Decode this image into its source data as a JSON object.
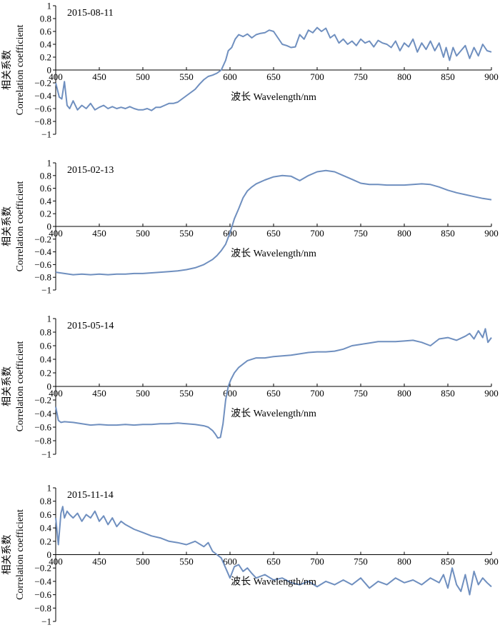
{
  "chart_data": [
    {
      "type": "line",
      "date_label": "2015-08-11",
      "xlabel": "波长 Wavelength/nm",
      "ylabel_cn": "相关系数",
      "ylabel_en": "Correlation coefficient",
      "xlim": [
        400,
        900
      ],
      "ylim": [
        -1,
        1
      ],
      "xticks": [
        "400",
        "450",
        "500",
        "550",
        "600",
        "650",
        "700",
        "750",
        "800",
        "850",
        "900"
      ],
      "yticks": [
        "1",
        "0.8",
        "0.6",
        "0.4",
        "0.2",
        "0",
        "−0.2",
        "−0.4",
        "−0.6",
        "−0.8",
        "−1"
      ],
      "line_color": "#6f8fbf",
      "x": [
        400,
        404,
        407,
        410,
        413,
        416,
        420,
        425,
        430,
        435,
        440,
        445,
        450,
        455,
        460,
        465,
        470,
        475,
        480,
        485,
        490,
        495,
        500,
        505,
        510,
        515,
        520,
        525,
        530,
        535,
        540,
        545,
        550,
        555,
        560,
        565,
        570,
        575,
        580,
        585,
        590,
        595,
        598,
        602,
        606,
        610,
        615,
        620,
        625,
        630,
        635,
        640,
        645,
        650,
        655,
        660,
        665,
        670,
        675,
        680,
        685,
        690,
        695,
        700,
        705,
        710,
        715,
        720,
        725,
        730,
        735,
        740,
        745,
        750,
        755,
        760,
        765,
        770,
        775,
        780,
        785,
        790,
        795,
        800,
        805,
        810,
        815,
        820,
        825,
        830,
        835,
        840,
        845,
        848,
        852,
        856,
        860,
        865,
        870,
        875,
        880,
        885,
        890,
        895,
        900
      ],
      "y": [
        -0.2,
        -0.42,
        -0.45,
        -0.18,
        -0.55,
        -0.6,
        -0.48,
        -0.62,
        -0.55,
        -0.6,
        -0.52,
        -0.62,
        -0.58,
        -0.55,
        -0.6,
        -0.57,
        -0.6,
        -0.58,
        -0.6,
        -0.57,
        -0.6,
        -0.62,
        -0.62,
        -0.6,
        -0.63,
        -0.58,
        -0.58,
        -0.55,
        -0.52,
        -0.52,
        -0.5,
        -0.45,
        -0.4,
        -0.35,
        -0.3,
        -0.22,
        -0.15,
        -0.1,
        -0.08,
        -0.05,
        0,
        0.15,
        0.3,
        0.35,
        0.48,
        0.55,
        0.52,
        0.56,
        0.5,
        0.55,
        0.57,
        0.58,
        0.62,
        0.6,
        0.5,
        0.4,
        0.38,
        0.35,
        0.36,
        0.55,
        0.48,
        0.62,
        0.58,
        0.66,
        0.6,
        0.65,
        0.5,
        0.55,
        0.42,
        0.48,
        0.4,
        0.45,
        0.38,
        0.48,
        0.42,
        0.45,
        0.36,
        0.46,
        0.42,
        0.4,
        0.35,
        0.45,
        0.3,
        0.42,
        0.36,
        0.48,
        0.28,
        0.42,
        0.32,
        0.45,
        0.3,
        0.42,
        0.2,
        0.35,
        0.15,
        0.35,
        0.22,
        0.3,
        0.38,
        0.18,
        0.35,
        0.22,
        0.4,
        0.3,
        0.28
      ]
    },
    {
      "type": "line",
      "date_label": "2015-02-13",
      "xlabel": "波长 Wavelength/nm",
      "ylabel_cn": "相关系数",
      "ylabel_en": "Correlation coefficient",
      "xlim": [
        400,
        900
      ],
      "ylim": [
        -1,
        1
      ],
      "xticks": [
        "400",
        "450",
        "500",
        "550",
        "600",
        "650",
        "700",
        "750",
        "800",
        "850",
        "900"
      ],
      "yticks": [
        "1",
        "0.8",
        "0.6",
        "0.4",
        "0.2",
        "0",
        "−0.2",
        "−0.4",
        "−0.6",
        "−0.8",
        "−1"
      ],
      "line_color": "#6f8fbf",
      "x": [
        400,
        410,
        420,
        430,
        440,
        450,
        460,
        470,
        480,
        490,
        500,
        510,
        520,
        530,
        540,
        550,
        560,
        570,
        575,
        580,
        585,
        590,
        595,
        600,
        605,
        610,
        615,
        620,
        625,
        630,
        640,
        650,
        660,
        670,
        680,
        690,
        700,
        710,
        720,
        730,
        740,
        750,
        760,
        770,
        780,
        790,
        800,
        810,
        820,
        830,
        840,
        850,
        860,
        870,
        880,
        890,
        900
      ],
      "y": [
        -0.72,
        -0.74,
        -0.76,
        -0.75,
        -0.76,
        -0.75,
        -0.76,
        -0.75,
        -0.75,
        -0.74,
        -0.74,
        -0.73,
        -0.72,
        -0.71,
        -0.7,
        -0.68,
        -0.65,
        -0.6,
        -0.56,
        -0.52,
        -0.46,
        -0.38,
        -0.28,
        -0.1,
        0.12,
        0.28,
        0.45,
        0.56,
        0.62,
        0.67,
        0.73,
        0.78,
        0.8,
        0.79,
        0.72,
        0.8,
        0.86,
        0.88,
        0.86,
        0.8,
        0.74,
        0.68,
        0.66,
        0.66,
        0.65,
        0.65,
        0.65,
        0.66,
        0.67,
        0.66,
        0.62,
        0.57,
        0.53,
        0.5,
        0.47,
        0.44,
        0.42
      ]
    },
    {
      "type": "line",
      "date_label": "2015-05-14",
      "xlabel": "波长 Wavelength/nm",
      "ylabel_cn": "相关系数",
      "ylabel_en": "Correlation coefficient",
      "xlim": [
        400,
        900
      ],
      "ylim": [
        -1,
        1
      ],
      "xticks": [
        "400",
        "450",
        "500",
        "550",
        "600",
        "650",
        "700",
        "750",
        "800",
        "850",
        "900"
      ],
      "yticks": [
        "1",
        "0.8",
        "0.6",
        "0.4",
        "0.2",
        "0",
        "−0.2",
        "−0.4",
        "−0.6",
        "−0.8",
        "−1"
      ],
      "line_color": "#6f8fbf",
      "x": [
        400,
        403,
        406,
        410,
        420,
        430,
        440,
        450,
        460,
        470,
        480,
        490,
        500,
        510,
        520,
        530,
        540,
        550,
        560,
        570,
        575,
        580,
        583,
        586,
        589,
        592,
        595,
        598,
        601,
        605,
        610,
        620,
        630,
        640,
        650,
        660,
        670,
        680,
        690,
        700,
        710,
        720,
        730,
        740,
        750,
        760,
        770,
        780,
        790,
        800,
        810,
        820,
        830,
        840,
        850,
        860,
        870,
        875,
        880,
        885,
        890,
        893,
        896,
        900
      ],
      "y": [
        -0.3,
        -0.5,
        -0.53,
        -0.52,
        -0.53,
        -0.55,
        -0.57,
        -0.56,
        -0.57,
        -0.57,
        -0.56,
        -0.57,
        -0.56,
        -0.56,
        -0.55,
        -0.55,
        -0.54,
        -0.55,
        -0.56,
        -0.58,
        -0.6,
        -0.65,
        -0.7,
        -0.76,
        -0.75,
        -0.55,
        -0.2,
        0.0,
        0.1,
        0.2,
        0.28,
        0.38,
        0.42,
        0.42,
        0.44,
        0.45,
        0.46,
        0.48,
        0.5,
        0.51,
        0.51,
        0.52,
        0.55,
        0.6,
        0.62,
        0.64,
        0.66,
        0.66,
        0.66,
        0.67,
        0.68,
        0.65,
        0.6,
        0.7,
        0.72,
        0.68,
        0.74,
        0.78,
        0.7,
        0.82,
        0.72,
        0.85,
        0.65,
        0.72
      ]
    },
    {
      "type": "line",
      "date_label": "2015-11-14",
      "xlabel": "波长 Wavelength/nm",
      "ylabel_cn": "相关系数",
      "ylabel_en": "Correlation coefficient",
      "xlim": [
        400,
        900
      ],
      "ylim": [
        -1,
        1
      ],
      "xticks": [
        "400",
        "450",
        "500",
        "550",
        "600",
        "650",
        "700",
        "750",
        "800",
        "850",
        "900"
      ],
      "yticks": [
        "1",
        "0.8",
        "0.6",
        "0.4",
        "0.2",
        "0",
        "−0.2",
        "−0.4",
        "−0.6",
        "−0.8",
        "−1"
      ],
      "line_color": "#6f8fbf",
      "x": [
        400,
        403,
        406,
        408,
        410,
        413,
        416,
        420,
        425,
        430,
        435,
        440,
        445,
        450,
        455,
        460,
        465,
        470,
        475,
        480,
        490,
        500,
        510,
        520,
        530,
        540,
        550,
        560,
        570,
        575,
        580,
        585,
        590,
        595,
        600,
        605,
        610,
        615,
        620,
        625,
        630,
        640,
        650,
        660,
        670,
        680,
        690,
        700,
        710,
        720,
        730,
        740,
        750,
        760,
        770,
        780,
        790,
        800,
        810,
        820,
        830,
        840,
        845,
        850,
        855,
        860,
        865,
        870,
        875,
        880,
        885,
        890,
        895,
        900
      ],
      "y": [
        0.55,
        0.15,
        0.62,
        0.72,
        0.55,
        0.65,
        0.6,
        0.55,
        0.62,
        0.5,
        0.6,
        0.55,
        0.65,
        0.5,
        0.58,
        0.45,
        0.55,
        0.42,
        0.5,
        0.45,
        0.38,
        0.33,
        0.28,
        0.25,
        0.2,
        0.18,
        0.15,
        0.2,
        0.12,
        0.18,
        0.05,
        0,
        -0.05,
        -0.2,
        -0.35,
        -0.18,
        -0.15,
        -0.25,
        -0.2,
        -0.28,
        -0.35,
        -0.3,
        -0.38,
        -0.35,
        -0.42,
        -0.45,
        -0.4,
        -0.48,
        -0.4,
        -0.45,
        -0.38,
        -0.45,
        -0.35,
        -0.5,
        -0.4,
        -0.45,
        -0.35,
        -0.42,
        -0.38,
        -0.45,
        -0.35,
        -0.42,
        -0.3,
        -0.5,
        -0.2,
        -0.45,
        -0.55,
        -0.3,
        -0.6,
        -0.25,
        -0.45,
        -0.35,
        -0.42,
        -0.48
      ]
    }
  ]
}
